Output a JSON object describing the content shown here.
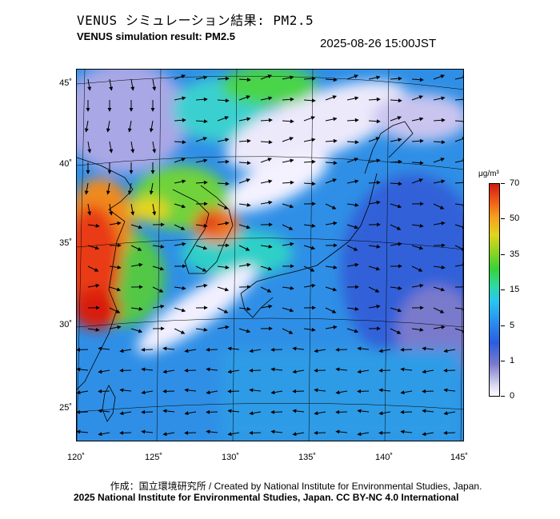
{
  "header": {
    "title_jp": "VENUS シミュレーション結果: PM2.5",
    "title_en": "VENUS simulation result: PM2.5",
    "timestamp": "2025-08-26 15:00JST"
  },
  "map": {
    "lat_labels": [
      "45˚",
      "40˚",
      "35˚",
      "30˚",
      "25˚"
    ],
    "lon_labels": [
      "120˚",
      "125˚",
      "130˚",
      "135˚",
      "140˚",
      "145˚"
    ]
  },
  "colorbar": {
    "unit": "μg/m³",
    "tick_labels": [
      "70",
      "50",
      "35",
      "15",
      "5",
      "1",
      "0"
    ],
    "colors": [
      "#ffffff",
      "#7a7acc",
      "#2a5ee0",
      "#29c8f0",
      "#38d238",
      "#e2d41e",
      "#f05a1a",
      "#d01a0e"
    ]
  },
  "footer": {
    "credit_jp": "作成：国立環境研究所 / Created by National Institute for Environmental Studies, Japan.",
    "copyright": "2025 National Institute for Environmental Studies, Japan. CC BY-NC 4.0 International"
  }
}
